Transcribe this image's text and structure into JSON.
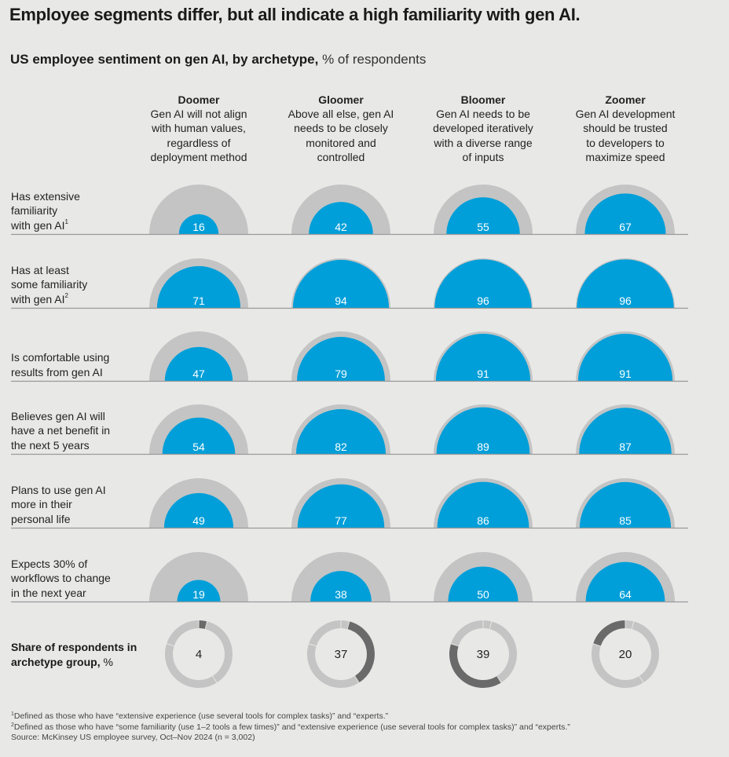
{
  "title": "Employee segments differ, but all indicate a high familiarity with gen AI.",
  "subtitle": {
    "bold": "US employee sentiment on gen AI, by archetype,",
    "normal": " % of respondents"
  },
  "colors": {
    "blue": "#009fd9",
    "gray_outer": "#c4c4c4",
    "dark_segment": "#6a6a6a",
    "light_segment": "#c4c4c4",
    "baseline": "#9a9a9a",
    "background": "#e8e8e7"
  },
  "archetypes": [
    {
      "name": "Doomer",
      "lines": [
        "Gen AI will not align",
        "with human values,",
        "regardless of",
        "deployment method"
      ]
    },
    {
      "name": "Gloomer",
      "lines": [
        "Above all else, gen AI",
        "needs to be closely",
        "monitored and",
        "controlled"
      ]
    },
    {
      "name": "Bloomer",
      "lines": [
        "Gen AI needs to be",
        "developed iteratively",
        "with a diverse range",
        "of inputs"
      ]
    },
    {
      "name": "Zoomer",
      "lines": [
        "Gen AI development",
        "should be trusted",
        "to developers to",
        "maximize speed"
      ]
    }
  ],
  "rows": [
    {
      "lines": [
        "Has extensive",
        "familiarity",
        "with gen AI"
      ],
      "sup": "1"
    },
    {
      "lines": [
        "Has at least",
        "some familiarity",
        "with gen AI"
      ],
      "sup": "2"
    },
    {
      "lines": [
        "Is comfortable using",
        "results from gen AI"
      ],
      "sup": ""
    },
    {
      "lines": [
        "Believes gen AI will",
        "have a net benefit in",
        "the next 5 years"
      ],
      "sup": ""
    },
    {
      "lines": [
        "Plans to use gen AI",
        "more in their",
        "personal life"
      ],
      "sup": ""
    },
    {
      "lines": [
        "Expects 30% of",
        "workflows to change",
        "in the next year"
      ],
      "sup": ""
    }
  ],
  "share_label": {
    "bold": "Share of respondents in archetype group,",
    "normal": " %"
  },
  "chart_data": {
    "type": "proportional-semicircle-grid",
    "title": "Employee segments differ, but all indicate a high familiarity with gen AI.",
    "subtitle": "US employee sentiment on gen AI, by archetype, % of respondents",
    "unit": "% of respondents",
    "scale_max": 100,
    "categories": [
      "Doomer",
      "Gloomer",
      "Bloomer",
      "Zoomer"
    ],
    "series": [
      {
        "name": "Has extensive familiarity with gen AI",
        "values": [
          16,
          42,
          55,
          67
        ]
      },
      {
        "name": "Has at least some familiarity with gen AI",
        "values": [
          71,
          94,
          96,
          96
        ]
      },
      {
        "name": "Is comfortable using results from gen AI",
        "values": [
          47,
          79,
          91,
          91
        ]
      },
      {
        "name": "Believes gen AI will have a net benefit in the next 5 years",
        "values": [
          54,
          82,
          89,
          87
        ]
      },
      {
        "name": "Plans to use gen AI more in their personal life",
        "values": [
          49,
          77,
          86,
          85
        ]
      },
      {
        "name": "Expects 30% of workflows to change in the next year",
        "values": [
          19,
          38,
          50,
          64
        ]
      }
    ],
    "share": {
      "type": "pie",
      "name": "Share of respondents in archetype group, %",
      "labels": [
        "Doomer",
        "Gloomer",
        "Bloomer",
        "Zoomer"
      ],
      "values": [
        4,
        37,
        39,
        20
      ]
    }
  },
  "footnotes": [
    {
      "sup": "1",
      "text": "Defined as those who have “extensive experience (use several tools for complex tasks)” and “experts.”"
    },
    {
      "sup": "2",
      "text": "Defined as those who have “some familiarity (use 1–2 tools a few times)” and “extensive experience (use several tools for complex tasks)” and “experts.”"
    },
    {
      "sup": "",
      "text": " Source: McKinsey US employee survey, Oct–Nov 2024 (n = 3,002)"
    }
  ]
}
